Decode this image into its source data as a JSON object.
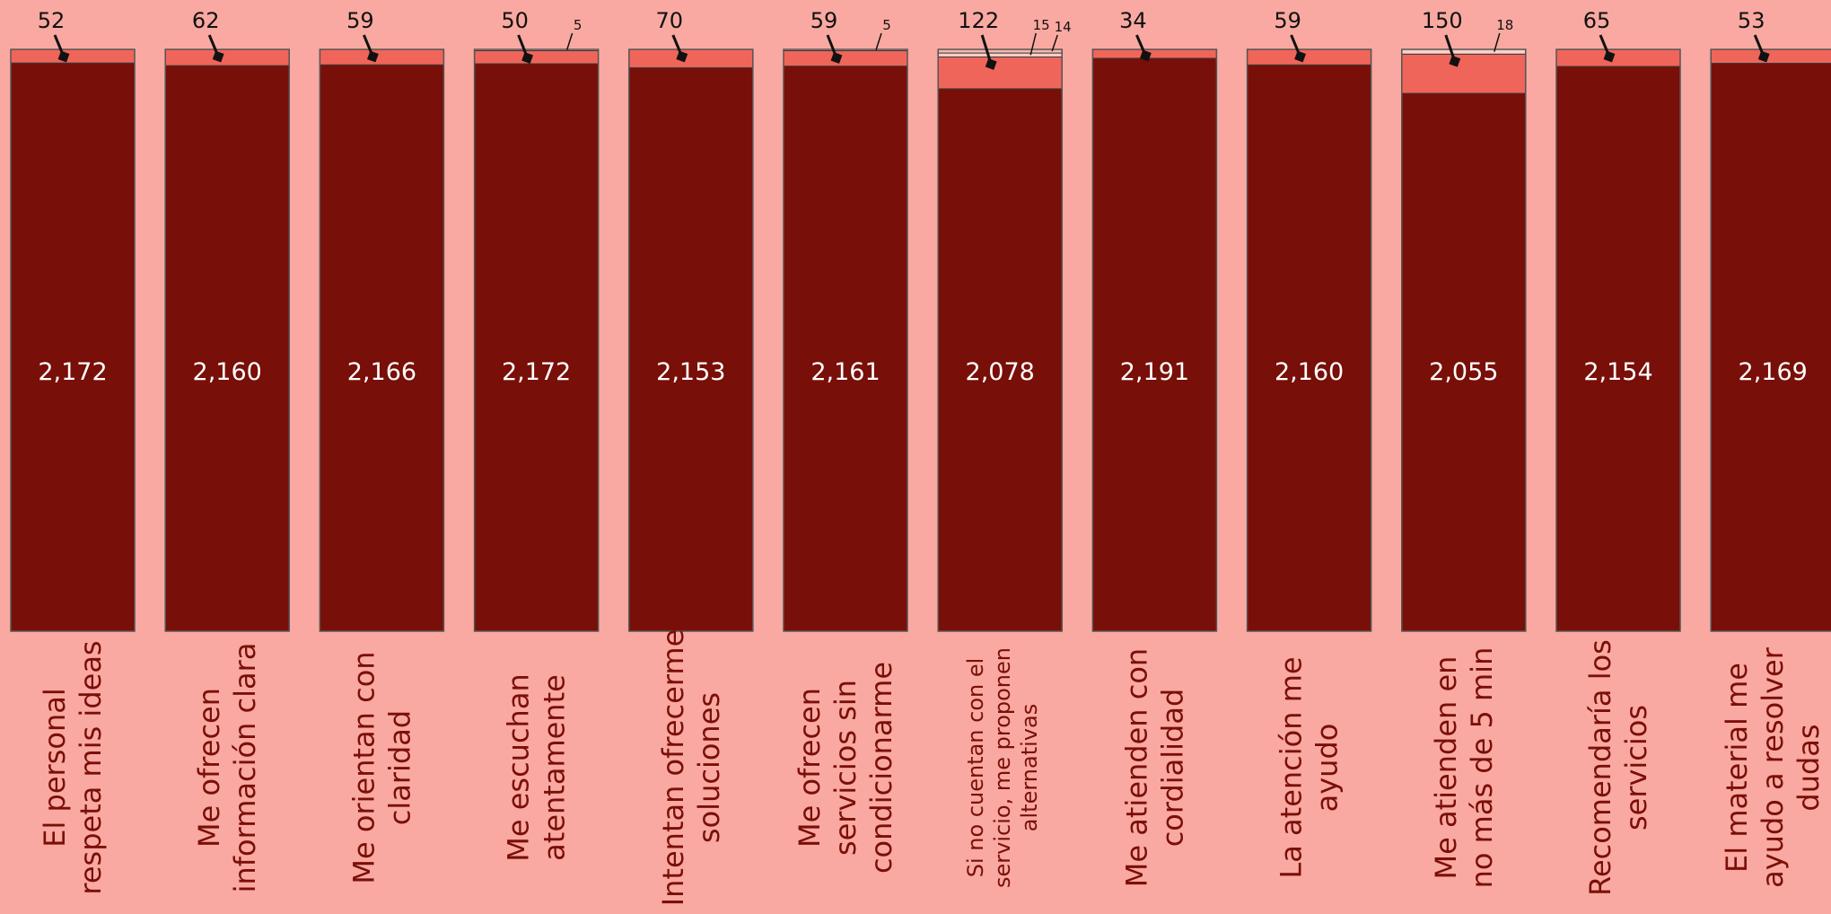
{
  "chart_data": {
    "type": "bar",
    "stacked": true,
    "orientation": "vertical",
    "categories": [
      "El personal respeta mis ideas",
      "Me ofrecen información clara",
      "Me orientan con claridad",
      "Me escuchan atentamente",
      "Intentan ofrecerme soluciones",
      "Me ofrecen servicios sin condicionarme",
      "Si no cuentan con el servicio, me proponen alternativas",
      "Me atienden con cordialidad",
      "La atención me ayudo",
      "Me atienden en no más de 5 min",
      "Recomendaría los servicios",
      "El material me ayudo a resolver dudas"
    ],
    "category_lines": [
      [
        "El personal",
        "respeta mis ideas"
      ],
      [
        "Me ofrecen",
        "información clara"
      ],
      [
        "Me orientan con",
        "claridad"
      ],
      [
        "Me escuchan",
        "atentamente"
      ],
      [
        "Intentan ofrecerme",
        "soluciones"
      ],
      [
        "Me ofrecen",
        "servicios sin",
        "condicionarme"
      ],
      [
        "Si no cuentan con el",
        "servicio, me proponen",
        "alternativas"
      ],
      [
        "Me atienden con",
        "cordialidad"
      ],
      [
        "La atención me",
        "ayudo"
      ],
      [
        "Me atienden en",
        "no más de 5 min"
      ],
      [
        "Recomendaría los",
        "servicios"
      ],
      [
        "El material me",
        "ayudo a resolver",
        "dudas"
      ]
    ],
    "series": [
      {
        "values": [
          2172,
          2160,
          2166,
          2172,
          2153,
          2161,
          2078,
          2191,
          2160,
          2055,
          2154,
          2169
        ]
      },
      {
        "values": [
          52,
          62,
          59,
          50,
          70,
          59,
          122,
          34,
          59,
          150,
          65,
          53
        ]
      },
      {
        "values": [
          0,
          0,
          0,
          5,
          0,
          5,
          15,
          0,
          0,
          18,
          0,
          0
        ]
      },
      {
        "values": [
          0,
          0,
          0,
          0,
          0,
          0,
          14,
          0,
          0,
          0,
          0,
          0
        ]
      }
    ],
    "labels_shown_for": [
      [],
      [],
      [
        3,
        5,
        6,
        9
      ],
      [
        6
      ]
    ],
    "colors": [
      "#780f08",
      "#f0655a",
      "#fbd1c8",
      "#f7b8ad"
    ],
    "grid": false,
    "legend": "none"
  }
}
